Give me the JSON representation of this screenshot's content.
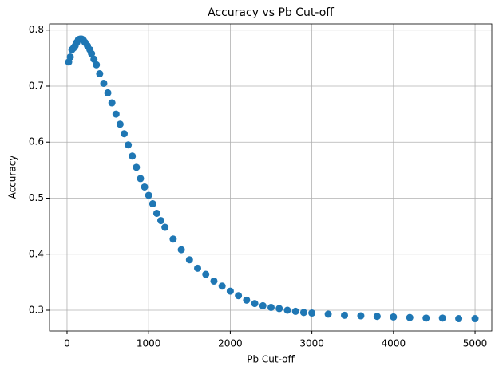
{
  "chart_data": {
    "type": "scatter",
    "title": "Accuracy vs Pb Cut-off",
    "x_label": "Pb Cut-off",
    "y_label": "Accuracy",
    "x": [
      20,
      40,
      60,
      80,
      100,
      120,
      140,
      160,
      180,
      200,
      220,
      250,
      280,
      300,
      330,
      360,
      400,
      450,
      500,
      550,
      600,
      650,
      700,
      750,
      800,
      850,
      900,
      950,
      1000,
      1050,
      1100,
      1150,
      1200,
      1300,
      1400,
      1500,
      1600,
      1700,
      1800,
      1900,
      2000,
      2100,
      2200,
      2300,
      2400,
      2500,
      2600,
      2700,
      2800,
      2900,
      3000,
      3200,
      3400,
      3600,
      3800,
      4000,
      4200,
      4400,
      4600,
      4800,
      5000
    ],
    "series": [
      {
        "name": "Accuracy",
        "color": "#1f77b4",
        "values": [
          0.743,
          0.752,
          0.765,
          0.768,
          0.772,
          0.778,
          0.783,
          0.784,
          0.784,
          0.782,
          0.778,
          0.772,
          0.765,
          0.758,
          0.748,
          0.738,
          0.722,
          0.705,
          0.688,
          0.67,
          0.65,
          0.632,
          0.615,
          0.595,
          0.575,
          0.555,
          0.535,
          0.52,
          0.505,
          0.49,
          0.473,
          0.46,
          0.448,
          0.427,
          0.408,
          0.39,
          0.375,
          0.364,
          0.352,
          0.343,
          0.334,
          0.326,
          0.318,
          0.312,
          0.308,
          0.305,
          0.303,
          0.3,
          0.298,
          0.296,
          0.295,
          0.293,
          0.291,
          0.29,
          0.289,
          0.288,
          0.287,
          0.286,
          0.286,
          0.285,
          0.285
        ]
      }
    ],
    "xlim": [
      -215,
      5205
    ],
    "ylim": [
      0.263,
      0.811
    ],
    "xticks": [
      0,
      1000,
      2000,
      3000,
      4000,
      5000
    ],
    "yticks": [
      0.3,
      0.4,
      0.5,
      0.6,
      0.7,
      0.8
    ],
    "grid": true
  }
}
